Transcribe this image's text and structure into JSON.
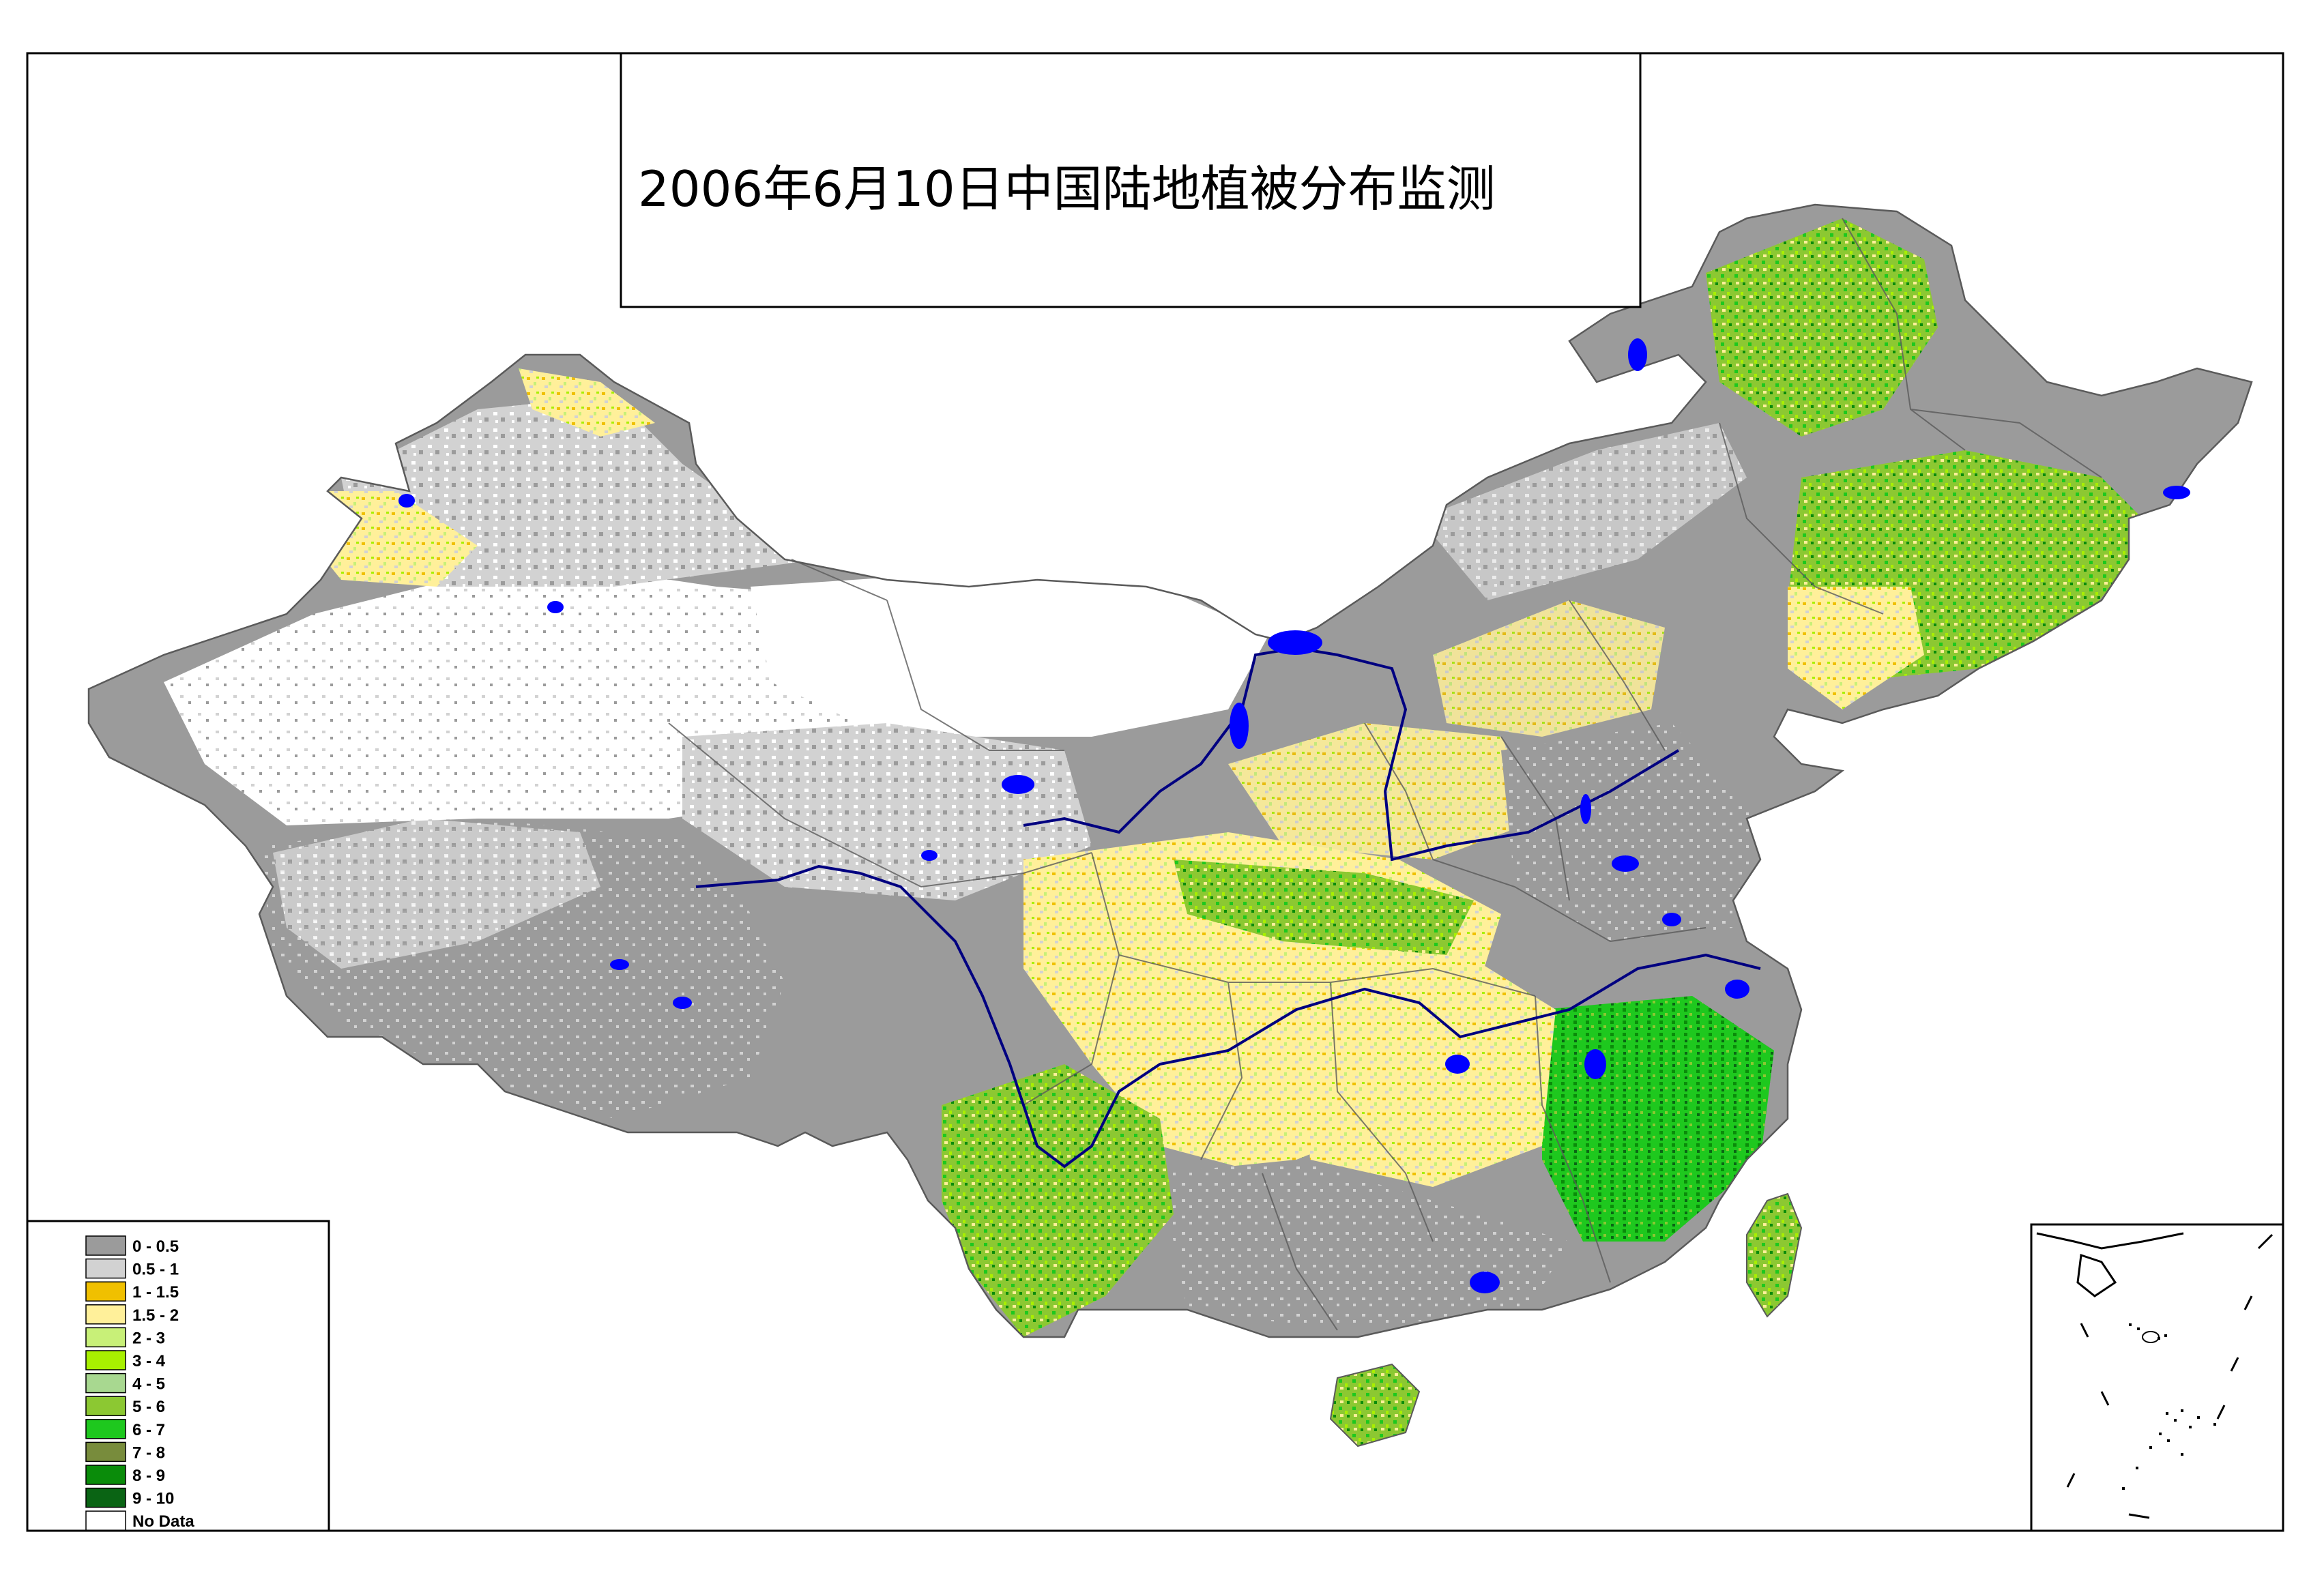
{
  "title": "2006年6月10日中国陆地植被分布监测",
  "legend": {
    "items": [
      {
        "label": "0 - 0.5",
        "color": "#9b9b9b"
      },
      {
        "label": "0.5 - 1",
        "color": "#d2d2d2"
      },
      {
        "label": "1 - 1.5",
        "color": "#f0c000"
      },
      {
        "label": "1.5 - 2",
        "color": "#fff09a"
      },
      {
        "label": "2 - 3",
        "color": "#c8f078"
      },
      {
        "label": "3 - 4",
        "color": "#a8f000"
      },
      {
        "label": "4 - 5",
        "color": "#a8d890"
      },
      {
        "label": "5 - 6",
        "color": "#8cc832"
      },
      {
        "label": "6 - 7",
        "color": "#1ec81e"
      },
      {
        "label": "7 - 8",
        "color": "#788c3c"
      },
      {
        "label": "8 - 9",
        "color": "#0a8c0a"
      },
      {
        "label": "9 - 10",
        "color": "#0a6414"
      },
      {
        "label": "No Data",
        "color": "#ffffff"
      }
    ]
  },
  "colors": {
    "water": "#0000ff",
    "river": "#000080",
    "border": "#5a5a5a",
    "frame": "#000000"
  }
}
